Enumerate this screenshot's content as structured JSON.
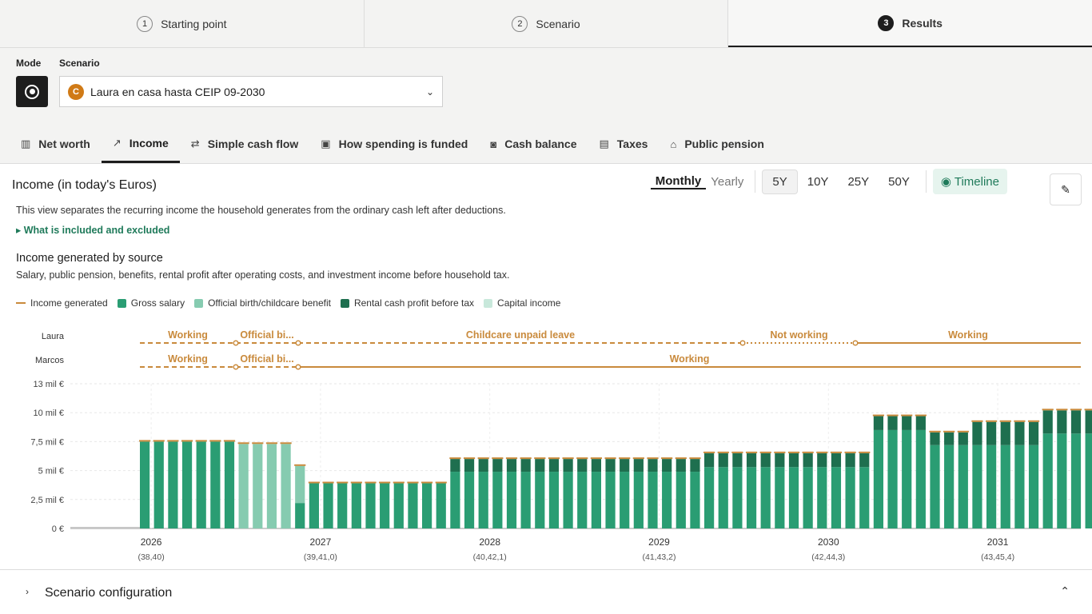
{
  "steps": [
    {
      "num": "1",
      "label": "Starting point"
    },
    {
      "num": "2",
      "label": "Scenario"
    },
    {
      "num": "3",
      "label": "Results"
    }
  ],
  "mode_label": "Mode",
  "scenario_label": "Scenario",
  "scenario": {
    "badge": "C",
    "name": "Laura en casa hasta CEIP 09-2030"
  },
  "tabs": [
    {
      "label": "Net worth",
      "icon": "chart-icon"
    },
    {
      "label": "Income",
      "icon": "trend-icon"
    },
    {
      "label": "Simple cash flow",
      "icon": "arrows-icon"
    },
    {
      "label": "How spending is funded",
      "icon": "receipt-icon"
    },
    {
      "label": "Cash balance",
      "icon": "cash-icon"
    },
    {
      "label": "Taxes",
      "icon": "doc-icon"
    },
    {
      "label": "Public pension",
      "icon": "bank-icon"
    }
  ],
  "panel": {
    "title": "Income (in today's Euros)",
    "period": {
      "monthly": "Monthly",
      "yearly": "Yearly"
    },
    "ranges": [
      "5Y",
      "10Y",
      "25Y",
      "50Y"
    ],
    "timeline": "Timeline",
    "desc": "This view separates the recurring income the household generates from the ordinary cash left after deductions.",
    "details": "What is included and excluded",
    "subtitle": "Income generated by source",
    "subdesc": "Salary, public pension, benefits, rental profit after operating costs, and investment income before household tax."
  },
  "legend": [
    {
      "label": "Income generated",
      "kind": "line",
      "color": "#c98a3c"
    },
    {
      "label": "Gross salary",
      "kind": "box",
      "color": "#2a9d73"
    },
    {
      "label": "Official birth/childcare benefit",
      "kind": "box",
      "color": "#86cbb0"
    },
    {
      "label": "Rental cash profit before tax",
      "kind": "box",
      "color": "#1e6f4f"
    },
    {
      "label": "Capital income",
      "kind": "box",
      "color": "#c8e8db"
    }
  ],
  "timeline_rows": [
    {
      "person": "Laura",
      "segments": [
        {
          "label": "Working"
        },
        {
          "label": "Official bi..."
        },
        {
          "label": "Childcare unpaid leave"
        },
        {
          "label": "Not working"
        },
        {
          "label": "Working"
        }
      ]
    },
    {
      "person": "Marcos",
      "segments": [
        {
          "label": "Working"
        },
        {
          "label": "Official bi..."
        },
        {
          "label": "Working"
        }
      ]
    }
  ],
  "config": {
    "label": "Scenario configuration"
  },
  "colors": {
    "salary": "#2a9d73",
    "benefit": "#86cbb0",
    "rental": "#1e6f4f",
    "capital": "#c8e8db",
    "line": "#c98a3c"
  },
  "chart_data": {
    "type": "bar",
    "stacked": true,
    "yticks": [
      "0 €",
      "2,5 mil €",
      "5 mil €",
      "7,5 mil €",
      "10 mil €",
      "13 mil €"
    ],
    "ylim": [
      0,
      12500
    ],
    "xticks": [
      {
        "year": "2026",
        "ages": "(38,40)"
      },
      {
        "year": "2027",
        "ages": "(39,41,0)"
      },
      {
        "year": "2028",
        "ages": "(40,42,1)"
      },
      {
        "year": "2029",
        "ages": "(41,43,2)"
      },
      {
        "year": "2030",
        "ages": "(42,44,3)"
      },
      {
        "year": "2031",
        "ages": "(43,45,4)"
      }
    ],
    "start_month": "2026-01",
    "series": [
      {
        "name": "Gross salary",
        "values": [
          7500,
          7500,
          7500,
          7500,
          7500,
          7500,
          7500,
          0,
          0,
          0,
          0,
          2200,
          3900,
          3900,
          3900,
          3900,
          3900,
          3900,
          3900,
          3900,
          3900,
          3900,
          4900,
          4900,
          4900,
          4900,
          4900,
          4900,
          4900,
          4900,
          4900,
          4900,
          4900,
          4900,
          4900,
          4900,
          4900,
          4900,
          4900,
          4900,
          5300,
          5300,
          5300,
          5300,
          5300,
          5300,
          5300,
          5300,
          5300,
          5300,
          5300,
          5300,
          8500,
          8500,
          8500,
          8500,
          7200,
          7200,
          7200,
          7200,
          7200,
          7200,
          7200,
          7200,
          8200,
          8200,
          8200,
          8200
        ]
      },
      {
        "name": "Official birth/childcare benefit",
        "values": [
          0,
          0,
          0,
          0,
          0,
          0,
          0,
          7300,
          7300,
          7300,
          7300,
          3200,
          0,
          0,
          0,
          0,
          0,
          0,
          0,
          0,
          0,
          0,
          0,
          0,
          0,
          0,
          0,
          0,
          0,
          0,
          0,
          0,
          0,
          0,
          0,
          0,
          0,
          0,
          0,
          0,
          0,
          0,
          0,
          0,
          0,
          0,
          0,
          0,
          0,
          0,
          0,
          0,
          0,
          0,
          0,
          0,
          0,
          0,
          0,
          0,
          0,
          0,
          0,
          0,
          0,
          0,
          0,
          0
        ]
      },
      {
        "name": "Rental cash profit before tax",
        "values": [
          0,
          0,
          0,
          0,
          0,
          0,
          0,
          0,
          0,
          0,
          0,
          0,
          0,
          0,
          0,
          0,
          0,
          0,
          0,
          0,
          0,
          0,
          1100,
          1100,
          1100,
          1100,
          1100,
          1100,
          1100,
          1100,
          1100,
          1100,
          1100,
          1100,
          1100,
          1100,
          1100,
          1100,
          1100,
          1100,
          1200,
          1200,
          1200,
          1200,
          1200,
          1200,
          1200,
          1200,
          1200,
          1200,
          1200,
          1200,
          1200,
          1200,
          1200,
          1200,
          1100,
          1100,
          1100,
          2000,
          2000,
          2000,
          2000,
          2000,
          2000,
          2000,
          2000,
          2000
        ]
      }
    ]
  }
}
